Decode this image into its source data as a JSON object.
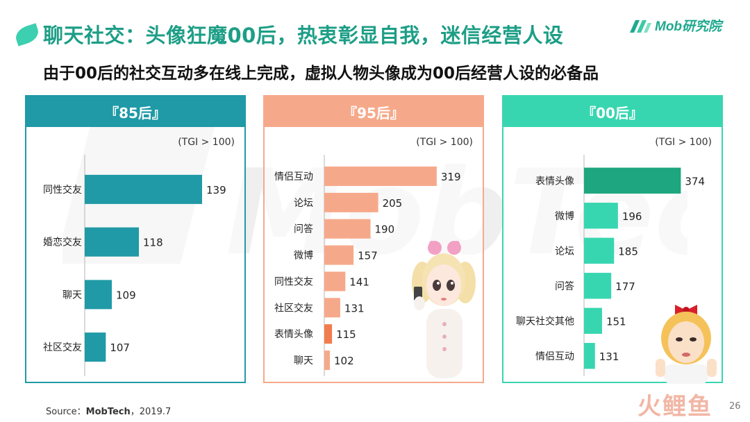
{
  "header": {
    "title": "聊天社交：头像狂魔00后，热衷彰显自我，迷信经营人设",
    "subtitle": "由于00后的社交互动多在线上完成，虚拟人物头像成为00后经营人设的必备品"
  },
  "logo": {
    "text": "Mob研究院",
    "icon": "mob-logo-icon"
  },
  "watermark": {
    "text": "MobTech"
  },
  "colors": {
    "teal_dark": "#1f9aa6",
    "salmon": "#f6a98a",
    "salmon_highlight": "#f27c4e",
    "mint": "#38d6b0",
    "mint_highlight": "#1da67f",
    "title_green": "#1d9e86"
  },
  "chart_data": [
    {
      "type": "bar",
      "orientation": "horizontal",
      "title": "『85后』",
      "note": "(TGI > 100)",
      "categories": [
        "同性交友",
        "婚恋交友",
        "聊天",
        "社区交友"
      ],
      "values": [
        139,
        118,
        109,
        107
      ],
      "highlight": [],
      "xlim": [
        100,
        145
      ],
      "color": "#1f9aa6"
    },
    {
      "type": "bar",
      "orientation": "horizontal",
      "title": "『95后』",
      "note": "(TGI > 100)",
      "categories": [
        "情侣互动",
        "论坛",
        "问答",
        "微博",
        "同性交友",
        "社区交友",
        "表情头像",
        "聊天"
      ],
      "values": [
        319,
        205,
        190,
        157,
        141,
        131,
        115,
        102
      ],
      "highlight": [
        6
      ],
      "xlim": [
        100,
        330
      ],
      "color": "#f6a98a",
      "highlight_color": "#f27c4e"
    },
    {
      "type": "bar",
      "orientation": "horizontal",
      "title": "『00后』",
      "note": "(TGI > 100)",
      "categories": [
        "表情头像",
        "微博",
        "论坛",
        "问答",
        "聊天社交其他",
        "情侣互动"
      ],
      "values": [
        374,
        196,
        185,
        177,
        151,
        131
      ],
      "highlight": [
        0
      ],
      "xlim": [
        100,
        385
      ],
      "color": "#38d6b0",
      "highlight_color": "#1da67f"
    }
  ],
  "footer": {
    "source_label": "Source：",
    "source_name": "MobTech",
    "source_date": "，2019.7",
    "page_number": "26",
    "brand_watermark": "火鲤鱼"
  }
}
